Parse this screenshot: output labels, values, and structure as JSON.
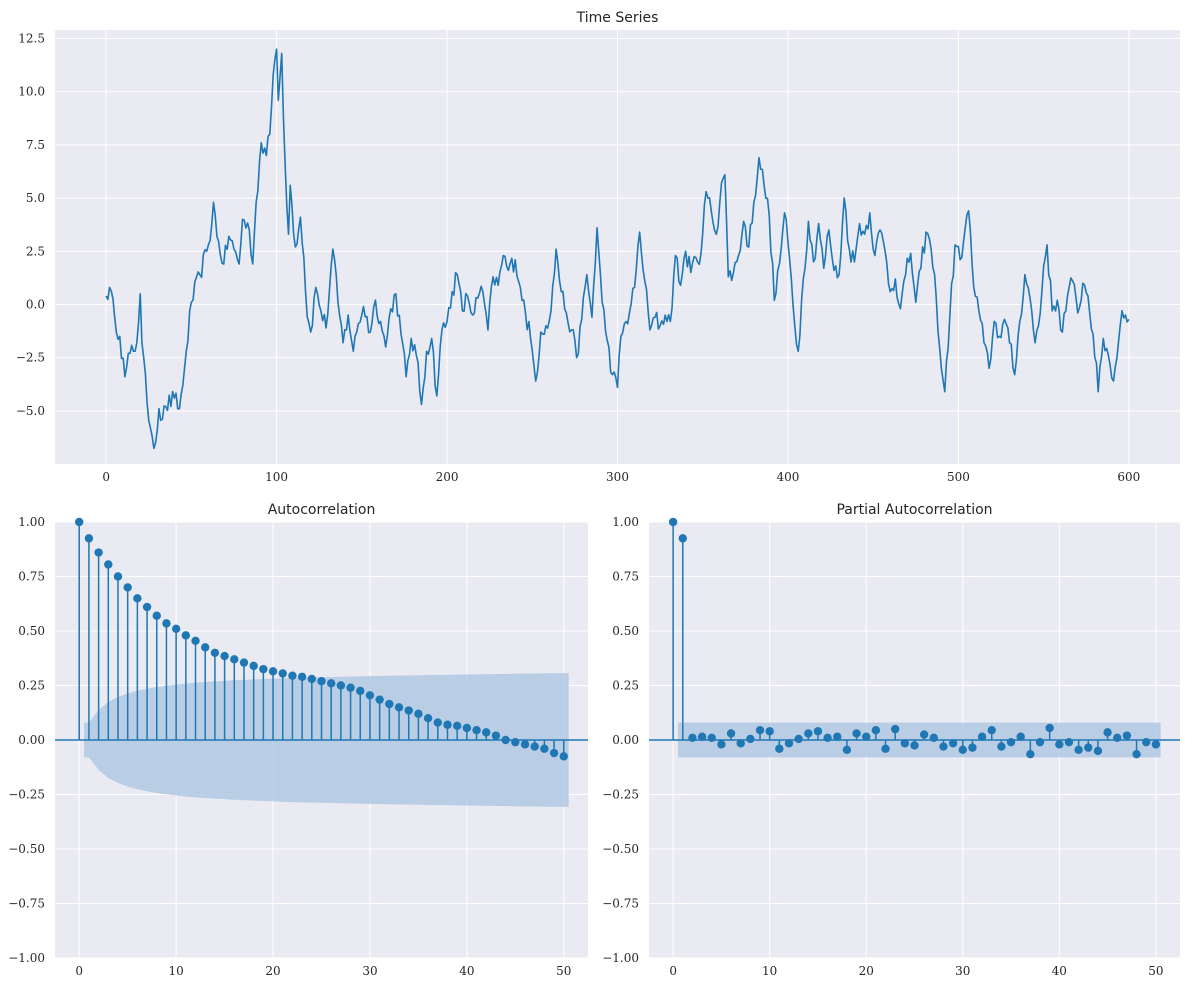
{
  "chart_data": [
    {
      "type": "line",
      "title": "Time Series",
      "xlabel": "",
      "ylabel": "",
      "xlim": [
        -30,
        630
      ],
      "ylim": [
        -7.5,
        12.9
      ],
      "xticks": [
        0,
        100,
        200,
        300,
        400,
        500,
        600
      ],
      "xtick_labels": [
        "0",
        "100",
        "200",
        "300",
        "400",
        "500",
        "600"
      ],
      "yticks": [
        -5.0,
        -2.5,
        0.0,
        2.5,
        5.0,
        7.5,
        10.0,
        12.5
      ],
      "ytick_labels": [
        "−5.0",
        "−2.5",
        "0.0",
        "2.5",
        "5.0",
        "7.5",
        "10.0",
        "12.5"
      ],
      "grid": true,
      "line_color": "#1f77b4",
      "anchors": [
        [
          0,
          0.4
        ],
        [
          2,
          0.8
        ],
        [
          5,
          -0.6
        ],
        [
          8,
          -1.5
        ],
        [
          11,
          -3.4
        ],
        [
          14,
          -2.3
        ],
        [
          18,
          -1.8
        ],
        [
          20,
          0.5
        ],
        [
          21,
          -1.8
        ],
        [
          24,
          -4.6
        ],
        [
          27,
          -6.2
        ],
        [
          29,
          -6.5
        ],
        [
          31,
          -4.9
        ],
        [
          33,
          -5.4
        ],
        [
          35,
          -4.8
        ],
        [
          40,
          -4.4
        ],
        [
          43,
          -4.9
        ],
        [
          45,
          -3.8
        ],
        [
          47,
          -2.2
        ],
        [
          50,
          0.1
        ],
        [
          55,
          1.4
        ],
        [
          59,
          2.5
        ],
        [
          62,
          3.8
        ],
        [
          63,
          4.8
        ],
        [
          65,
          3.2
        ],
        [
          69,
          1.9
        ],
        [
          72,
          3.2
        ],
        [
          75,
          2.6
        ],
        [
          78,
          1.9
        ],
        [
          80,
          4.0
        ],
        [
          84,
          3.5
        ],
        [
          86,
          1.9
        ],
        [
          88,
          4.8
        ],
        [
          91,
          7.6
        ],
        [
          94,
          7.0
        ],
        [
          96,
          8.0
        ],
        [
          98,
          10.8
        ],
        [
          100,
          12.0
        ],
        [
          101,
          9.6
        ],
        [
          103,
          11.8
        ],
        [
          105,
          6.6
        ],
        [
          107,
          3.3
        ],
        [
          108,
          5.6
        ],
        [
          111,
          2.7
        ],
        [
          114,
          4.1
        ],
        [
          116,
          2.2
        ],
        [
          118,
          -0.6
        ],
        [
          120,
          -1.3
        ],
        [
          123,
          0.8
        ],
        [
          126,
          -0.3
        ],
        [
          129,
          -1.1
        ],
        [
          133,
          2.6
        ],
        [
          136,
          0.1
        ],
        [
          139,
          -1.8
        ],
        [
          142,
          -0.5
        ],
        [
          145,
          -2.2
        ],
        [
          148,
          -0.9
        ],
        [
          151,
          -0.1
        ],
        [
          155,
          -1.3
        ],
        [
          158,
          0.2
        ],
        [
          161,
          -0.8
        ],
        [
          164,
          -2.0
        ],
        [
          167,
          -0.2
        ],
        [
          170,
          0.5
        ],
        [
          173,
          -1.4
        ],
        [
          176,
          -3.4
        ],
        [
          179,
          -1.6
        ],
        [
          182,
          -2.4
        ],
        [
          185,
          -4.7
        ],
        [
          188,
          -2.2
        ],
        [
          191,
          -1.6
        ],
        [
          194,
          -4.3
        ],
        [
          197,
          -1.2
        ],
        [
          200,
          -0.8
        ],
        [
          203,
          0.6
        ],
        [
          206,
          1.4
        ],
        [
          209,
          -0.3
        ],
        [
          212,
          0.4
        ],
        [
          215,
          -0.5
        ],
        [
          218,
          0.3
        ],
        [
          221,
          0.6
        ],
        [
          224,
          -1.2
        ],
        [
          227,
          1.3
        ],
        [
          230,
          0.9
        ],
        [
          233,
          2.3
        ],
        [
          236,
          1.6
        ],
        [
          240,
          2.1
        ],
        [
          243,
          0.8
        ],
        [
          246,
          -0.4
        ],
        [
          249,
          -1.6
        ],
        [
          252,
          -3.6
        ],
        [
          255,
          -1.3
        ],
        [
          258,
          -1.0
        ],
        [
          261,
          -0.3
        ],
        [
          264,
          2.6
        ],
        [
          267,
          0.6
        ],
        [
          270,
          -0.4
        ],
        [
          273,
          -1.2
        ],
        [
          276,
          -2.5
        ],
        [
          279,
          -0.7
        ],
        [
          282,
          1.4
        ],
        [
          285,
          -0.6
        ],
        [
          288,
          3.6
        ],
        [
          291,
          0.1
        ],
        [
          294,
          -1.7
        ],
        [
          297,
          -3.3
        ],
        [
          300,
          -3.9
        ],
        [
          302,
          -1.5
        ],
        [
          305,
          -0.8
        ],
        [
          307,
          -0.4
        ],
        [
          310,
          0.8
        ],
        [
          313,
          3.4
        ],
        [
          316,
          1.1
        ],
        [
          319,
          -1.2
        ],
        [
          322,
          -0.6
        ],
        [
          325,
          -1.0
        ],
        [
          328,
          -0.5
        ],
        [
          331,
          -0.8
        ],
        [
          334,
          2.3
        ],
        [
          337,
          0.9
        ],
        [
          340,
          2.5
        ],
        [
          343,
          1.5
        ],
        [
          346,
          2.2
        ],
        [
          349,
          2.4
        ],
        [
          352,
          5.3
        ],
        [
          355,
          4.4
        ],
        [
          358,
          3.3
        ],
        [
          361,
          5.7
        ],
        [
          363,
          6.1
        ],
        [
          365,
          1.3
        ],
        [
          368,
          1.5
        ],
        [
          371,
          2.3
        ],
        [
          374,
          3.9
        ],
        [
          377,
          2.7
        ],
        [
          380,
          4.8
        ],
        [
          383,
          6.9
        ],
        [
          386,
          5.6
        ],
        [
          389,
          4.2
        ],
        [
          392,
          0.2
        ],
        [
          395,
          1.9
        ],
        [
          398,
          4.3
        ],
        [
          401,
          2.1
        ],
        [
          404,
          -1.0
        ],
        [
          406,
          -2.2
        ],
        [
          409,
          1.2
        ],
        [
          412,
          3.9
        ],
        [
          415,
          2.0
        ],
        [
          418,
          3.8
        ],
        [
          421,
          1.7
        ],
        [
          424,
          3.5
        ],
        [
          427,
          1.6
        ],
        [
          430,
          1.4
        ],
        [
          433,
          5.0
        ],
        [
          436,
          2.6
        ],
        [
          439,
          2.0
        ],
        [
          442,
          3.8
        ],
        [
          445,
          3.3
        ],
        [
          448,
          4.3
        ],
        [
          451,
          2.3
        ],
        [
          454,
          3.5
        ],
        [
          457,
          2.5
        ],
        [
          460,
          0.6
        ],
        [
          463,
          1.2
        ],
        [
          466,
          -0.2
        ],
        [
          469,
          1.4
        ],
        [
          472,
          2.4
        ],
        [
          475,
          0.1
        ],
        [
          478,
          1.7
        ],
        [
          481,
          3.4
        ],
        [
          484,
          2.6
        ],
        [
          487,
          0.3
        ],
        [
          490,
          -3.0
        ],
        [
          492,
          -4.1
        ],
        [
          495,
          -0.5
        ],
        [
          498,
          2.8
        ],
        [
          501,
          2.1
        ],
        [
          504,
          3.6
        ],
        [
          506,
          4.4
        ],
        [
          509,
          0.8
        ],
        [
          512,
          -0.3
        ],
        [
          515,
          -1.8
        ],
        [
          518,
          -3.0
        ],
        [
          521,
          -0.8
        ],
        [
          524,
          -1.5
        ],
        [
          527,
          -0.7
        ],
        [
          530,
          -1.8
        ],
        [
          533,
          -3.3
        ],
        [
          536,
          -0.8
        ],
        [
          539,
          1.4
        ],
        [
          542,
          0.3
        ],
        [
          545,
          -1.8
        ],
        [
          548,
          -0.4
        ],
        [
          550,
          1.8
        ],
        [
          552,
          2.8
        ],
        [
          555,
          -0.3
        ],
        [
          558,
          0.2
        ],
        [
          561,
          -1.3
        ],
        [
          564,
          0.4
        ],
        [
          567,
          1.1
        ],
        [
          570,
          -0.4
        ],
        [
          573,
          1.0
        ],
        [
          576,
          0.4
        ],
        [
          579,
          -1.4
        ],
        [
          582,
          -4.1
        ],
        [
          585,
          -1.6
        ],
        [
          588,
          -2.4
        ],
        [
          591,
          -3.6
        ],
        [
          594,
          -1.7
        ],
        [
          596,
          -0.3
        ],
        [
          598,
          -0.5
        ],
        [
          600,
          -0.7
        ]
      ]
    },
    {
      "type": "stem",
      "title": "Autocorrelation",
      "xlabel": "",
      "ylabel": "",
      "xlim": [
        -2.5,
        52.5
      ],
      "ylim": [
        -1.0,
        1.0
      ],
      "xticks": [
        0,
        10,
        20,
        30,
        40,
        50
      ],
      "xtick_labels": [
        "0",
        "10",
        "20",
        "30",
        "40",
        "50"
      ],
      "yticks": [
        -1.0,
        -0.75,
        -0.5,
        -0.25,
        0.0,
        0.25,
        0.5,
        0.75,
        1.0
      ],
      "ytick_labels": [
        "−1.00",
        "−0.75",
        "−0.50",
        "−0.25",
        "0.00",
        "0.25",
        "0.50",
        "0.75",
        "1.00"
      ],
      "grid": true,
      "marker_color": "#1f77b4",
      "band_color": "#b0c9e3",
      "lags": [
        0,
        1,
        2,
        3,
        4,
        5,
        6,
        7,
        8,
        9,
        10,
        11,
        12,
        13,
        14,
        15,
        16,
        17,
        18,
        19,
        20,
        21,
        22,
        23,
        24,
        25,
        26,
        27,
        28,
        29,
        30,
        31,
        32,
        33,
        34,
        35,
        36,
        37,
        38,
        39,
        40,
        41,
        42,
        43,
        44,
        45,
        46,
        47,
        48,
        49,
        50
      ],
      "values": [
        1.0,
        0.925,
        0.86,
        0.805,
        0.75,
        0.7,
        0.65,
        0.61,
        0.57,
        0.535,
        0.51,
        0.48,
        0.455,
        0.425,
        0.4,
        0.385,
        0.37,
        0.355,
        0.34,
        0.325,
        0.315,
        0.305,
        0.295,
        0.29,
        0.28,
        0.27,
        0.26,
        0.25,
        0.24,
        0.225,
        0.205,
        0.185,
        0.165,
        0.15,
        0.135,
        0.12,
        0.1,
        0.08,
        0.07,
        0.065,
        0.055,
        0.045,
        0.035,
        0.02,
        0.0,
        -0.01,
        -0.02,
        -0.03,
        -0.04,
        -0.06,
        -0.075
      ],
      "confint_upper": [
        0.08,
        0.137,
        0.175,
        0.197,
        0.214,
        0.226,
        0.235,
        0.243,
        0.249,
        0.254,
        0.259,
        0.263,
        0.266,
        0.269,
        0.271,
        0.274,
        0.276,
        0.278,
        0.28,
        0.281,
        0.283,
        0.285,
        0.286,
        0.287,
        0.288,
        0.289,
        0.29,
        0.291,
        0.292,
        0.293,
        0.294,
        0.295,
        0.296,
        0.296,
        0.297,
        0.298,
        0.299,
        0.299,
        0.3,
        0.301,
        0.301,
        0.302,
        0.303,
        0.303,
        0.304,
        0.305,
        0.305,
        0.306,
        0.306,
        0.307
      ]
    },
    {
      "type": "stem",
      "title": "Partial Autocorrelation",
      "xlabel": "",
      "ylabel": "",
      "xlim": [
        -2.5,
        52.5
      ],
      "ylim": [
        -1.0,
        1.0
      ],
      "xticks": [
        0,
        10,
        20,
        30,
        40,
        50
      ],
      "xtick_labels": [
        "0",
        "10",
        "20",
        "30",
        "40",
        "50"
      ],
      "yticks": [
        -1.0,
        -0.75,
        -0.5,
        -0.25,
        0.0,
        0.25,
        0.5,
        0.75,
        1.0
      ],
      "ytick_labels": [
        "−1.00",
        "−0.75",
        "−0.50",
        "−0.25",
        "0.00",
        "0.25",
        "0.50",
        "0.75",
        "1.00"
      ],
      "grid": true,
      "marker_color": "#1f77b4",
      "band_color": "#b0c9e3",
      "lags": [
        0,
        1,
        2,
        3,
        4,
        5,
        6,
        7,
        8,
        9,
        10,
        11,
        12,
        13,
        14,
        15,
        16,
        17,
        18,
        19,
        20,
        21,
        22,
        23,
        24,
        25,
        26,
        27,
        28,
        29,
        30,
        31,
        32,
        33,
        34,
        35,
        36,
        37,
        38,
        39,
        40,
        41,
        42,
        43,
        44,
        45,
        46,
        47,
        48,
        49,
        50
      ],
      "values": [
        1.0,
        0.925,
        0.01,
        0.015,
        0.01,
        -0.02,
        0.03,
        -0.015,
        0.005,
        0.045,
        0.04,
        -0.04,
        -0.015,
        0.005,
        0.03,
        0.04,
        0.01,
        0.015,
        -0.045,
        0.03,
        0.015,
        0.045,
        -0.04,
        0.05,
        -0.015,
        -0.025,
        0.025,
        0.01,
        -0.03,
        -0.015,
        -0.045,
        -0.035,
        0.015,
        0.045,
        -0.03,
        -0.01,
        0.015,
        -0.065,
        -0.01,
        0.055,
        -0.02,
        -0.01,
        -0.045,
        -0.035,
        -0.05,
        0.035,
        0.01,
        0.02,
        -0.065,
        -0.01,
        -0.02
      ],
      "confint": 0.08
    }
  ]
}
